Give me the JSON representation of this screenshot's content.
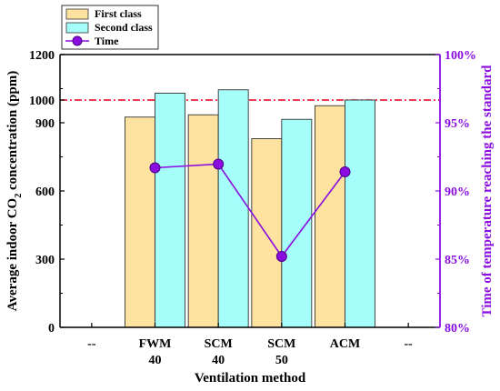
{
  "chart_data": {
    "type": "bar",
    "categories": [
      [
        "FWM",
        "40"
      ],
      [
        "SCM",
        "40"
      ],
      [
        "SCM",
        "50"
      ],
      [
        "ACM",
        ""
      ]
    ],
    "x_edge_labels": [
      "--",
      "--"
    ],
    "xlabel": "Ventilation method",
    "ylabel": "Average indoor CO2 concentration (ppm)",
    "ylabel_parts": {
      "before": "Average indoor CO",
      "sub": "2",
      "after": " concentration (ppm)"
    },
    "y2label": "Time of temperature reaching the standard",
    "ylim": [
      0,
      1200
    ],
    "yticks": [
      0,
      300,
      600,
      900,
      1200
    ],
    "ytick_extra": 1000,
    "y2lim": [
      80,
      100
    ],
    "y2ticks": [
      "80%",
      "85%",
      "90%",
      "95%",
      "100%"
    ],
    "series": [
      {
        "name": "First class",
        "kind": "bar",
        "color": "#fde2a0",
        "values": [
          925,
          935,
          830,
          975
        ]
      },
      {
        "name": "Second class",
        "kind": "bar",
        "color": "#a6fefb",
        "values": [
          1030,
          1045,
          915,
          1000
        ]
      },
      {
        "name": "Time",
        "kind": "line",
        "axis": "right",
        "color": "#8a0ce0",
        "values": [
          91.7,
          91.97,
          85.2,
          91.4
        ]
      }
    ],
    "reference_line": {
      "value": 1000,
      "color": "#e8001a"
    },
    "legend": {
      "placement": "top-left"
    },
    "grid": false
  }
}
